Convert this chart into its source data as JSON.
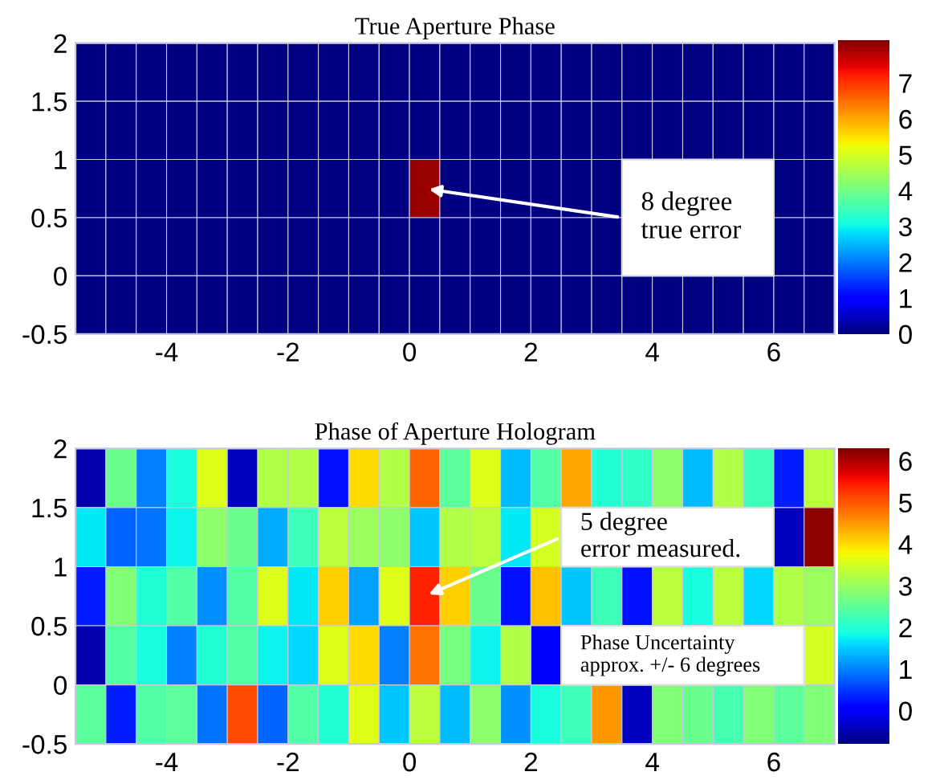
{
  "chart_data": [
    {
      "type": "heatmap",
      "title": "True Aperture Phase",
      "x": [
        -5.25,
        -4.75,
        -4.25,
        -3.75,
        -3.25,
        -2.75,
        -2.25,
        -1.75,
        -1.25,
        -0.75,
        -0.25,
        0.25,
        0.75,
        1.25,
        1.75,
        2.25,
        2.75,
        3.25,
        3.75,
        4.25,
        4.75,
        5.25,
        5.75,
        6.25,
        6.75
      ],
      "y": [
        1.75,
        1.25,
        0.75,
        0.25,
        -0.25
      ],
      "cells": [
        [
          0,
          0,
          0,
          0,
          0,
          0,
          0,
          0,
          0,
          0,
          0,
          0,
          0,
          0,
          0,
          0,
          0,
          0,
          0,
          0,
          0,
          0,
          0,
          0,
          0
        ],
        [
          0,
          0,
          0,
          0,
          0,
          0,
          0,
          0,
          0,
          0,
          0,
          0,
          0,
          0,
          0,
          0,
          0,
          0,
          0,
          0,
          0,
          0,
          0,
          0,
          0
        ],
        [
          0,
          0,
          0,
          0,
          0,
          0,
          0,
          0,
          0,
          0,
          0,
          8,
          0,
          0,
          0,
          0,
          0,
          0,
          null,
          null,
          null,
          null,
          null,
          0,
          0
        ],
        [
          0,
          0,
          0,
          0,
          0,
          0,
          0,
          0,
          0,
          0,
          0,
          0,
          0,
          0,
          0,
          0,
          0,
          0,
          null,
          null,
          null,
          null,
          null,
          0,
          0
        ],
        [
          0,
          0,
          0,
          0,
          0,
          0,
          0,
          0,
          0,
          0,
          0,
          0,
          0,
          0,
          0,
          0,
          0,
          0,
          0,
          0,
          0,
          0,
          0,
          0,
          0
        ]
      ],
      "xlim": [
        -5.5,
        7
      ],
      "xticks": [
        -4,
        -2,
        0,
        2,
        4,
        6
      ],
      "ylim": [
        -0.5,
        2
      ],
      "yticks": [
        -0.5,
        0,
        0.5,
        1,
        1.5,
        2
      ],
      "clim": [
        0,
        8.2
      ],
      "cticks": [
        0,
        1,
        2,
        3,
        4,
        5,
        6,
        7
      ],
      "annotations": [
        "8 degree\ntrue error"
      ]
    },
    {
      "type": "heatmap",
      "title": "Phase of Aperture Hologram",
      "x": [
        -5.25,
        -4.75,
        -4.25,
        -3.75,
        -3.25,
        -2.75,
        -2.25,
        -1.75,
        -1.25,
        -0.75,
        -0.25,
        0.25,
        0.75,
        1.25,
        1.75,
        2.25,
        2.75,
        3.25,
        3.75,
        4.25,
        4.75,
        5.25,
        5.75,
        6.25,
        6.75
      ],
      "y": [
        1.75,
        1.25,
        0.75,
        0.25,
        -0.25
      ],
      "cells": [
        [
          -0.5,
          2.6,
          1.0,
          1.9,
          3.6,
          -0.4,
          3.2,
          3.2,
          0.2,
          4.0,
          3.2,
          4.9,
          2.5,
          3.6,
          1.4,
          2.4,
          4.4,
          2.0,
          2.1,
          2.9,
          1.4,
          3.2,
          2.2,
          0.3,
          3.3
        ],
        [
          1.7,
          0.8,
          0.9,
          1.8,
          2.9,
          2.6,
          1.3,
          2.2,
          3.3,
          3.0,
          2.9,
          1.5,
          3.2,
          3.3,
          1.7,
          3.5,
          null,
          null,
          null,
          null,
          null,
          null,
          null,
          -0.4,
          6.2
        ],
        [
          0.3,
          2.8,
          2.0,
          2.4,
          1.1,
          2.4,
          3.6,
          1.7,
          4.1,
          1.2,
          3.6,
          5.4,
          4.1,
          2.6,
          0.2,
          4.2,
          1.5,
          2.2,
          0.2,
          3.3,
          1.9,
          3.3,
          1.6,
          3.2,
          3.0
        ],
        [
          -0.5,
          2.4,
          1.9,
          1.0,
          2.0,
          2.4,
          1.8,
          1.6,
          3.6,
          4.0,
          1.0,
          4.8,
          2.7,
          1.8,
          3.2,
          0.0,
          null,
          null,
          null,
          null,
          null,
          null,
          null,
          null,
          3.5
        ],
        [
          2.5,
          0.3,
          2.4,
          2.5,
          0.9,
          5.1,
          0.8,
          2.4,
          2.0,
          3.6,
          1.5,
          3.3,
          1.4,
          2.9,
          1.1,
          1.9,
          2.2,
          4.5,
          -0.4,
          2.8,
          2.6,
          2.3,
          2.8,
          2.5,
          2.8
        ]
      ],
      "xlim": [
        -5.5,
        7
      ],
      "xticks": [
        -4,
        -2,
        0,
        2,
        4,
        6
      ],
      "ylim": [
        -0.5,
        2
      ],
      "yticks": [
        -0.5,
        0,
        0.5,
        1,
        1.5,
        2
      ],
      "clim": [
        -0.8,
        6.3
      ],
      "cticks": [
        0,
        1,
        2,
        3,
        4,
        5,
        6
      ],
      "annotations": [
        "5 degree\nerror measured.",
        "Phase Uncertainty\napprox. +/- 6 degrees"
      ]
    }
  ]
}
